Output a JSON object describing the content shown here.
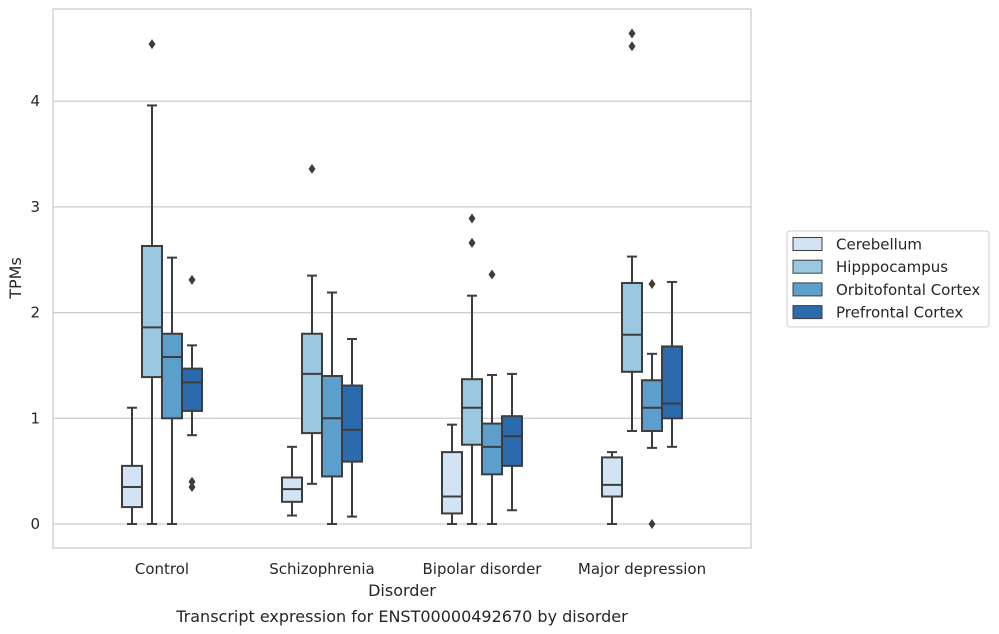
{
  "chart_data": {
    "type": "box",
    "caption": "Transcript expression for ENST00000492670 by disorder",
    "xlabel": "Disorder",
    "ylabel": "TPMs",
    "ylim": [
      -0.22,
      4.87
    ],
    "yticks": [
      0,
      1,
      2,
      3,
      4
    ],
    "grid": "horizontal",
    "legend_position": "right",
    "categories": [
      "Control",
      "Schizophrenia",
      "Bipolar disorder",
      "Major depression"
    ],
    "series": [
      {
        "name": "Cerebellum",
        "color": "#d2e3f3",
        "boxes": [
          {
            "whisker_low": 0.0,
            "q1": 0.16,
            "median": 0.35,
            "q3": 0.55,
            "whisker_high": 1.1,
            "outliers": []
          },
          {
            "whisker_low": 0.08,
            "q1": 0.21,
            "median": 0.33,
            "q3": 0.44,
            "whisker_high": 0.73,
            "outliers": []
          },
          {
            "whisker_low": 0.0,
            "q1": 0.1,
            "median": 0.26,
            "q3": 0.68,
            "whisker_high": 0.94,
            "outliers": []
          },
          {
            "whisker_low": 0.0,
            "q1": 0.26,
            "median": 0.37,
            "q3": 0.63,
            "whisker_high": 0.68,
            "outliers": []
          }
        ]
      },
      {
        "name": "Hipppocampus",
        "color": "#9ac8e0",
        "boxes": [
          {
            "whisker_low": 0.0,
            "q1": 1.39,
            "median": 1.86,
            "q3": 2.63,
            "whisker_high": 3.96,
            "outliers": [
              4.54
            ]
          },
          {
            "whisker_low": 0.38,
            "q1": 0.86,
            "median": 1.42,
            "q3": 1.8,
            "whisker_high": 2.35,
            "outliers": [
              3.36
            ]
          },
          {
            "whisker_low": 0.0,
            "q1": 0.75,
            "median": 1.1,
            "q3": 1.37,
            "whisker_high": 2.16,
            "outliers": [
              2.66,
              2.89
            ]
          },
          {
            "whisker_low": 0.88,
            "q1": 1.44,
            "median": 1.79,
            "q3": 2.28,
            "whisker_high": 2.53,
            "outliers": [
              4.52,
              4.64
            ]
          }
        ]
      },
      {
        "name": "Orbitofontal Cortex",
        "color": "#5c9fcd",
        "boxes": [
          {
            "whisker_low": 0.0,
            "q1": 1.0,
            "median": 1.58,
            "q3": 1.8,
            "whisker_high": 2.52,
            "outliers": []
          },
          {
            "whisker_low": 0.0,
            "q1": 0.45,
            "median": 1.0,
            "q3": 1.4,
            "whisker_high": 2.19,
            "outliers": []
          },
          {
            "whisker_low": 0.0,
            "q1": 0.47,
            "median": 0.73,
            "q3": 0.95,
            "whisker_high": 1.41,
            "outliers": [
              2.36
            ]
          },
          {
            "whisker_low": 0.72,
            "q1": 0.88,
            "median": 1.1,
            "q3": 1.36,
            "whisker_high": 1.61,
            "outliers": [
              0.0,
              2.27
            ]
          }
        ]
      },
      {
        "name": "Prefrontal Cortex",
        "color": "#2a6aad",
        "boxes": [
          {
            "whisker_low": 0.84,
            "q1": 1.07,
            "median": 1.34,
            "q3": 1.47,
            "whisker_high": 1.69,
            "outliers": [
              0.35,
              0.4,
              2.31
            ]
          },
          {
            "whisker_low": 0.07,
            "q1": 0.59,
            "median": 0.89,
            "q3": 1.31,
            "whisker_high": 1.75,
            "outliers": []
          },
          {
            "whisker_low": 0.13,
            "q1": 0.55,
            "median": 0.83,
            "q3": 1.02,
            "whisker_high": 1.42,
            "outliers": []
          },
          {
            "whisker_low": 0.73,
            "q1": 1.0,
            "median": 1.14,
            "q3": 1.68,
            "whisker_high": 2.29,
            "outliers": []
          }
        ]
      }
    ]
  }
}
